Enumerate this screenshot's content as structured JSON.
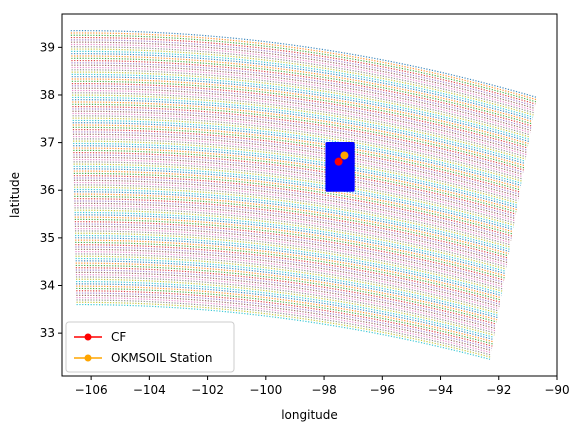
{
  "chart_data": {
    "type": "scatter",
    "xlabel": "longitude",
    "ylabel": "latitude",
    "xlim": [
      -107.0,
      -90.0
    ],
    "ylim": [
      32.1,
      39.7
    ],
    "x_ticks": [
      -106,
      -104,
      -102,
      -100,
      -98,
      -96,
      -94,
      -92,
      -90
    ],
    "x_tick_labels": [
      "−106",
      "−104",
      "−102",
      "−100",
      "−98",
      "−96",
      "−94",
      "−92",
      "−90"
    ],
    "y_ticks": [
      33,
      34,
      35,
      36,
      37,
      38,
      39
    ],
    "y_tick_labels": [
      "33",
      "34",
      "35",
      "36",
      "37",
      "38",
      "39"
    ],
    "grid": false,
    "legend_position": "lower-left",
    "swath": {
      "corners": {
        "top_left": [
          -106.7,
          39.35
        ],
        "top_right": [
          -90.7,
          37.95
        ],
        "bottom_left": [
          -106.5,
          33.6
        ],
        "bottom_right": [
          -92.3,
          32.45
        ]
      },
      "top_mid_lat": 39.38,
      "bottom_mid_lat": 33.6,
      "row_colors": [
        "#1f77b4",
        "#ff7f0e",
        "#2ca02c",
        "#d62728",
        "#9467bd",
        "#8c564b",
        "#e377c2",
        "#7f7f7f",
        "#bcbd22",
        "#17becf"
      ]
    },
    "domain_box": {
      "color": "#0000ff",
      "lon_range": [
        -97.9,
        -97.0
      ],
      "lat_range": [
        36.0,
        36.98
      ]
    },
    "series": [
      {
        "name": "CF",
        "color": "#ff0000",
        "points": [
          [
            -97.5,
            36.6
          ]
        ]
      },
      {
        "name": "OKMSOIL Station",
        "color": "#ffa500",
        "points": [
          [
            -97.3,
            36.73
          ]
        ]
      }
    ]
  }
}
